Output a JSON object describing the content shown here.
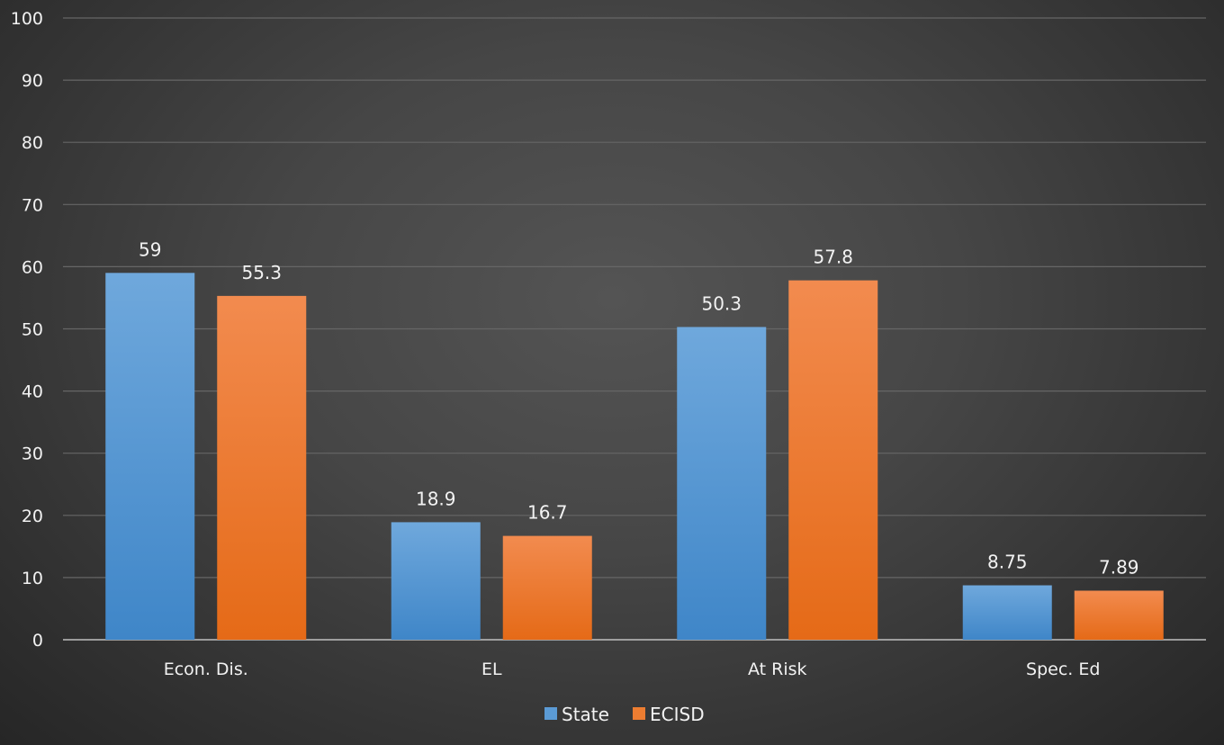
{
  "chart_data": {
    "type": "bar",
    "categories": [
      "Econ. Dis.",
      "EL",
      "At Risk",
      "Spec. Ed"
    ],
    "series": [
      {
        "name": "State",
        "values": [
          59,
          18.9,
          50.3,
          8.75
        ],
        "labels": [
          "59",
          "18.9",
          "50.3",
          "8.75"
        ],
        "color": "#5b9bd5"
      },
      {
        "name": "ECISD",
        "values": [
          55.3,
          16.7,
          57.8,
          7.89
        ],
        "labels": [
          "55.3",
          "16.7",
          "57.8",
          "7.89"
        ],
        "color": "#ed7d31"
      }
    ],
    "yticks": [
      "0",
      "10",
      "20",
      "30",
      "40",
      "50",
      "60",
      "70",
      "80",
      "90",
      "100"
    ],
    "ylim": [
      0,
      100
    ],
    "grid": true,
    "legend_position": "bottom"
  }
}
